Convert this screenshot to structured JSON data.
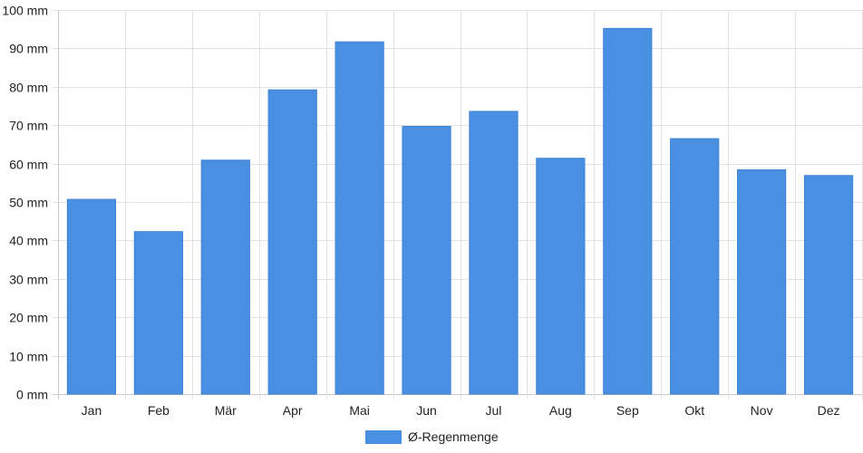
{
  "chart_data": {
    "type": "bar",
    "categories": [
      "Jan",
      "Feb",
      "Mär",
      "Apr",
      "Mai",
      "Jun",
      "Jul",
      "Aug",
      "Sep",
      "Okt",
      "Nov",
      "Dez"
    ],
    "series": [
      {
        "name": "Ø-Regenmenge",
        "values": [
          50.7,
          42.3,
          60.9,
          79.2,
          91.7,
          69.7,
          73.6,
          61.4,
          95.2,
          66.5,
          58.4,
          56.9
        ],
        "color": "#4a90e2"
      }
    ],
    "yticks": [
      "0 mm",
      "10 mm",
      "20 mm",
      "30 mm",
      "40 mm",
      "50 mm",
      "60 mm",
      "70 mm",
      "80 mm",
      "90 mm",
      "100 mm"
    ],
    "ylim": [
      0,
      100
    ],
    "grid": true,
    "legend_position": "bottom"
  }
}
